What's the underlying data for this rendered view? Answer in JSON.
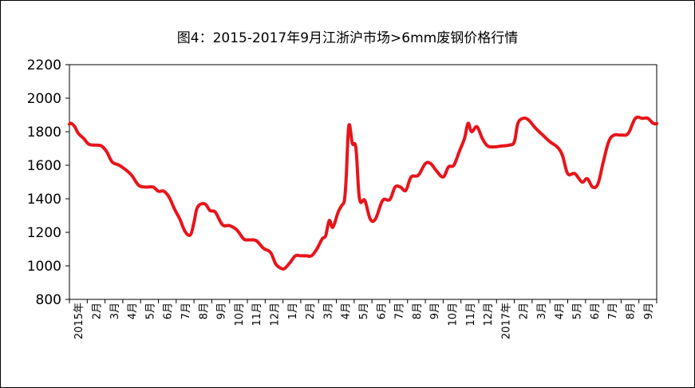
{
  "title": "图4：2015-2017年9月江浙沪市场>6mm废钢价格行情",
  "chart_data": {
    "type": "line",
    "title": "图4：2015-2017年9月江浙沪市场>6mm废钢价格行情",
    "xlabel": "",
    "ylabel": "",
    "ylim": [
      800,
      2200
    ],
    "yticks": [
      "800",
      "1000",
      "1200",
      "1400",
      "1600",
      "1800",
      "2000",
      "2200"
    ],
    "xtick_labels": [
      "2015年",
      "2月",
      "3月",
      "4月",
      "5月",
      "6月",
      "7月",
      "8月",
      "9月",
      "10月",
      "11月",
      "12月",
      "1月",
      "2月",
      "3月",
      "4月",
      "5月",
      "6月",
      "7月",
      "8月",
      "9月",
      "10月",
      "11月",
      "12月",
      "2017年",
      "2月",
      "3月",
      "4月",
      "5月",
      "6月",
      "7月",
      "8月",
      "9月"
    ],
    "grid": false,
    "legend": "none",
    "line_color": "#e8141b",
    "series": [
      {
        "x": [
          0,
          0.1,
          0.3,
          0.5,
          0.8,
          1.1,
          1.5,
          1.8,
          2.1,
          2.4,
          2.8,
          3.2,
          3.5,
          3.9,
          4.3,
          4.7,
          5.0,
          5.3,
          5.6,
          5.9,
          6.2,
          6.5,
          6.8,
          7.0,
          7.2,
          7.6,
          7.9,
          8.2,
          8.6,
          9.0,
          9.4,
          9.8,
          10.1,
          10.5,
          10.9,
          11.3,
          11.6,
          11.9,
          12.1,
          12.4,
          12.7,
          13.0,
          13.3,
          13.6,
          13.9,
          14.2,
          14.4,
          14.6,
          14.8,
          15.1,
          15.3,
          15.45,
          15.55,
          15.7,
          15.9,
          16.1,
          16.3,
          16.6,
          16.9,
          17.2,
          17.6,
          18.0,
          18.3,
          18.6,
          18.9,
          19.2,
          19.6,
          20.0,
          20.3,
          20.6,
          21.0,
          21.3,
          21.6,
          21.9,
          22.2,
          22.4,
          22.6,
          22.9,
          23.2,
          23.5,
          23.9,
          24.3,
          24.7,
          25.0,
          25.2,
          25.5,
          25.8,
          26.2,
          26.6,
          27.0,
          27.4,
          27.7,
          28.0,
          28.4,
          28.8,
          29.1,
          29.4,
          29.7,
          30.0,
          30.3,
          30.6,
          31.0,
          31.4,
          31.8,
          32.2,
          32.5,
          32.8,
          33.0
        ],
        "values": [
          1845,
          1850,
          1830,
          1790,
          1760,
          1725,
          1720,
          1715,
          1680,
          1620,
          1600,
          1570,
          1540,
          1480,
          1470,
          1470,
          1445,
          1445,
          1410,
          1340,
          1280,
          1205,
          1185,
          1260,
          1350,
          1370,
          1330,
          1320,
          1245,
          1240,
          1215,
          1160,
          1155,
          1150,
          1105,
          1080,
          1010,
          985,
          985,
          1020,
          1060,
          1060,
          1060,
          1060,
          1100,
          1160,
          1180,
          1270,
          1230,
          1320,
          1360,
          1390,
          1520,
          1835,
          1730,
          1700,
          1400,
          1390,
          1280,
          1280,
          1390,
          1395,
          1470,
          1470,
          1450,
          1530,
          1540,
          1610,
          1610,
          1570,
          1530,
          1590,
          1600,
          1680,
          1760,
          1850,
          1800,
          1830,
          1760,
          1715,
          1710,
          1715,
          1720,
          1740,
          1850,
          1880,
          1870,
          1820,
          1780,
          1740,
          1710,
          1660,
          1550,
          1550,
          1500,
          1520,
          1470,
          1490,
          1620,
          1740,
          1780,
          1780,
          1790,
          1880,
          1880,
          1880,
          1850,
          1848
        ]
      }
    ]
  }
}
